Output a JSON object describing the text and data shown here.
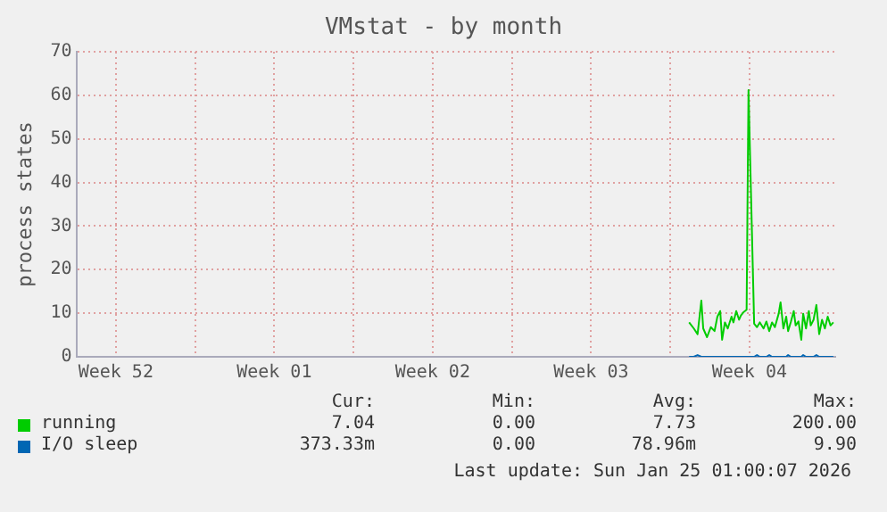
{
  "chart_data": {
    "type": "line",
    "title": "VMstat - by month",
    "ylabel": "process states",
    "x": [
      "2026-01-19T20:00",
      "2026-01-20T01:00",
      "2026-01-20T05:00",
      "2026-01-20T09:00",
      "2026-01-20T11:00",
      "2026-01-20T15:00",
      "2026-01-20T19:00",
      "2026-01-20T23:00",
      "2026-01-21T02:00",
      "2026-01-21T05:00",
      "2026-01-21T07:00",
      "2026-01-21T10:00",
      "2026-01-21T13:00",
      "2026-01-21T17:00",
      "2026-01-21T19:00",
      "2026-01-21T22:00",
      "2026-01-22T01:00",
      "2026-01-22T03:00",
      "2026-01-22T06:00",
      "2026-01-22T09:00",
      "2026-01-22T11:00",
      "2026-01-22T17:00",
      "2026-01-22T20:00",
      "2026-01-22T23:00",
      "2026-01-23T03:00",
      "2026-01-23T06:00",
      "2026-01-23T09:00",
      "2026-01-23T12:00",
      "2026-01-23T15:00",
      "2026-01-23T19:00",
      "2026-01-23T21:00",
      "2026-01-24T00:00",
      "2026-01-24T03:00",
      "2026-01-24T05:00",
      "2026-01-24T08:00",
      "2026-01-24T11:00",
      "2026-01-24T13:00",
      "2026-01-24T16:00",
      "2026-01-24T19:00",
      "2026-01-24T21:00",
      "2026-01-25T00:00",
      "2026-01-25T03:00",
      "2026-01-25T05:00",
      "2026-01-25T08:00",
      "2026-01-25T11:00",
      "2026-01-25T14:00",
      "2026-01-25T17:00",
      "2026-01-25T20:00",
      "2026-01-25T23:00",
      "2026-01-26T02:00",
      "2026-01-26T05:00"
    ],
    "series": [
      {
        "name": "running",
        "color": "#00cc00",
        "values": [
          7.9,
          6.5,
          5.2,
          12.9,
          6.5,
          4.5,
          6.8,
          5.9,
          9.2,
          10.5,
          3.9,
          7.9,
          6.5,
          9.2,
          7.9,
          10.5,
          8.5,
          9.5,
          10.3,
          10.8,
          61.2,
          7.6,
          6.8,
          7.9,
          6.5,
          8.1,
          5.9,
          7.9,
          6.8,
          9.9,
          12.5,
          6.5,
          9.2,
          5.9,
          8.1,
          10.5,
          7.2,
          8.1,
          3.9,
          9.9,
          6.5,
          10.5,
          7.2,
          8.5,
          11.9,
          5.2,
          8.5,
          6.5,
          9.2,
          7.2,
          7.9
        ]
      },
      {
        "name": "I/O sleep",
        "color": "#0066b3",
        "values": [
          0,
          0,
          0.4,
          0,
          0,
          0,
          0,
          0,
          0,
          0,
          0,
          0,
          0,
          0,
          0,
          0,
          0,
          0,
          0,
          0,
          0,
          0,
          0.4,
          0,
          0,
          0,
          0.4,
          0,
          0,
          0,
          0,
          0,
          0,
          0.4,
          0,
          0,
          0,
          0,
          0,
          0.4,
          0,
          0,
          0,
          0,
          0.4,
          0,
          0,
          0,
          0,
          0,
          0
        ]
      }
    ],
    "xlim": [
      "2025-12-23T19:00",
      "2026-01-26T07:00"
    ],
    "xticks": [
      {
        "value": "2025-12-25T12:00",
        "label": "Week 52"
      },
      {
        "value": "2025-12-29",
        "label": null
      },
      {
        "value": "2026-01-01T12:00",
        "label": "Week 01"
      },
      {
        "value": "2026-01-05",
        "label": null
      },
      {
        "value": "2026-01-08T12:00",
        "label": "Week 02"
      },
      {
        "value": "2026-01-12",
        "label": null
      },
      {
        "value": "2026-01-15T12:00",
        "label": "Week 03"
      },
      {
        "value": "2026-01-19",
        "label": null
      },
      {
        "value": "2026-01-22T12:00",
        "label": "Week 04"
      }
    ],
    "ylim": [
      0,
      70
    ],
    "yticks": [
      0,
      10,
      20,
      30,
      40,
      50,
      60,
      70
    ],
    "grid": true,
    "legend": "bottom",
    "marker": "none",
    "line_style": "solid",
    "annotations": [
      "Cur:",
      "Min:",
      "Avg:",
      "Max:",
      "7.04",
      "0.00",
      "7.73",
      "200.00",
      "373.33m",
      "0.00",
      "78.96m",
      "9.90",
      "Last update: Sun Jan 25 01:00:07 2026"
    ]
  }
}
